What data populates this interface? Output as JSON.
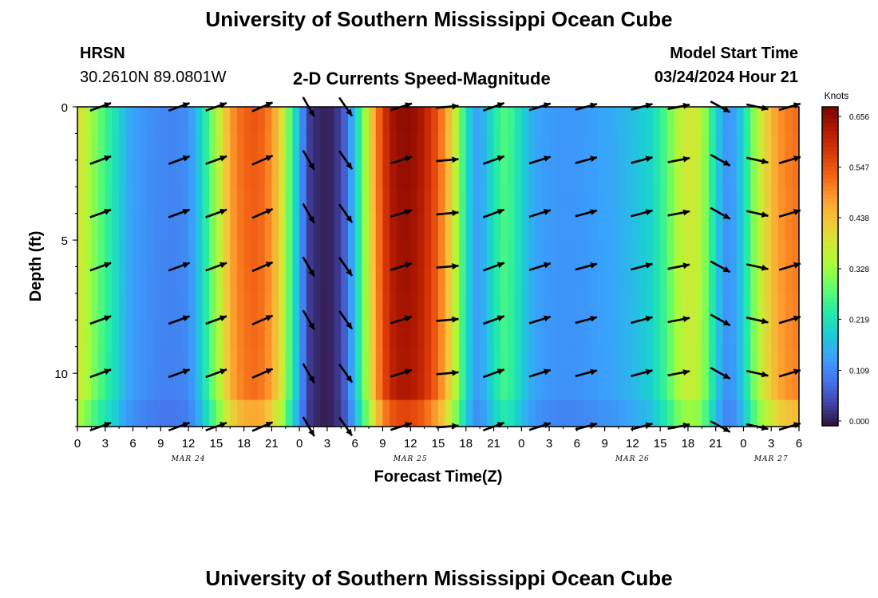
{
  "page": {
    "title": "University of Southern Mississippi Ocean Cube",
    "footer_title": "University of Southern Mississippi Ocean Cube",
    "station": "HRSN",
    "coords": "30.2610N  89.0801W",
    "subtitle": "2-D Currents Speed-Magnitude",
    "model_start_label": "Model Start Time",
    "model_start_value": "03/24/2024 Hour 21"
  },
  "chart_data": {
    "type": "heatmap",
    "title": "2-D Currents Speed-Magnitude",
    "xlabel": "Forecast Time(Z)",
    "ylabel": "Depth (ft)",
    "colorbar_label": "Knots",
    "x_hours": [
      0,
      3,
      6,
      9,
      12,
      15,
      18,
      21,
      24,
      27,
      30,
      33,
      36,
      39,
      42,
      45,
      48,
      51,
      54,
      57,
      60,
      63,
      66,
      69,
      72,
      75,
      78
    ],
    "x_tick_labels": [
      "0",
      "3",
      "6",
      "9",
      "12",
      "15",
      "18",
      "21",
      "0",
      "3",
      "6",
      "9",
      "12",
      "15",
      "18",
      "21",
      "0",
      "3",
      "6",
      "9",
      "12",
      "15",
      "18",
      "21",
      "0",
      "3",
      "6"
    ],
    "date_labels": [
      {
        "hour": 12,
        "text": "MAR 24"
      },
      {
        "hour": 36,
        "text": "MAR 25"
      },
      {
        "hour": 60,
        "text": "MAR 26"
      },
      {
        "hour": 75,
        "text": "MAR 27"
      }
    ],
    "ylim": [
      0,
      12
    ],
    "y_ticks": [
      0,
      5,
      10
    ],
    "y_tick_labels": [
      "0",
      "5",
      "10"
    ],
    "colorbar_ticks": [
      "0.000",
      "0.109",
      "0.219",
      "0.328",
      "0.438",
      "0.547",
      "0.656"
    ],
    "colorbar_range": [
      0,
      0.656
    ],
    "speed_profile": [
      {
        "h": 0,
        "v": 0.4
      },
      {
        "h": 1,
        "v": 0.35
      },
      {
        "h": 2,
        "v": 0.3
      },
      {
        "h": 3,
        "v": 0.26
      },
      {
        "h": 4,
        "v": 0.22
      },
      {
        "h": 5,
        "v": 0.17
      },
      {
        "h": 6,
        "v": 0.14
      },
      {
        "h": 8,
        "v": 0.12
      },
      {
        "h": 10,
        "v": 0.11
      },
      {
        "h": 12,
        "v": 0.12
      },
      {
        "h": 13,
        "v": 0.17
      },
      {
        "h": 14,
        "v": 0.25
      },
      {
        "h": 15,
        "v": 0.33
      },
      {
        "h": 16,
        "v": 0.42
      },
      {
        "h": 17,
        "v": 0.49
      },
      {
        "h": 18,
        "v": 0.52
      },
      {
        "h": 19,
        "v": 0.53
      },
      {
        "h": 20,
        "v": 0.52
      },
      {
        "h": 21,
        "v": 0.48
      },
      {
        "h": 22,
        "v": 0.4
      },
      {
        "h": 23,
        "v": 0.27
      },
      {
        "h": 24,
        "v": 0.15
      },
      {
        "h": 25,
        "v": 0.04
      },
      {
        "h": 26,
        "v": 0.02
      },
      {
        "h": 27,
        "v": 0.01
      },
      {
        "h": 28,
        "v": 0.03
      },
      {
        "h": 29,
        "v": 0.08
      },
      {
        "h": 30,
        "v": 0.18
      },
      {
        "h": 31,
        "v": 0.31
      },
      {
        "h": 32,
        "v": 0.45
      },
      {
        "h": 33,
        "v": 0.56
      },
      {
        "h": 34,
        "v": 0.62
      },
      {
        "h": 35,
        "v": 0.64
      },
      {
        "h": 36,
        "v": 0.64
      },
      {
        "h": 37,
        "v": 0.62
      },
      {
        "h": 38,
        "v": 0.58
      },
      {
        "h": 39,
        "v": 0.53
      },
      {
        "h": 40,
        "v": 0.45
      },
      {
        "h": 41,
        "v": 0.34
      },
      {
        "h": 42,
        "v": 0.22
      },
      {
        "h": 43,
        "v": 0.14
      },
      {
        "h": 44,
        "v": 0.16
      },
      {
        "h": 45,
        "v": 0.22
      },
      {
        "h": 46,
        "v": 0.27
      },
      {
        "h": 47,
        "v": 0.25
      },
      {
        "h": 48,
        "v": 0.2
      },
      {
        "h": 49,
        "v": 0.16
      },
      {
        "h": 50,
        "v": 0.14
      },
      {
        "h": 52,
        "v": 0.13
      },
      {
        "h": 54,
        "v": 0.13
      },
      {
        "h": 56,
        "v": 0.14
      },
      {
        "h": 58,
        "v": 0.15
      },
      {
        "h": 60,
        "v": 0.17
      },
      {
        "h": 62,
        "v": 0.2
      },
      {
        "h": 63,
        "v": 0.24
      },
      {
        "h": 64,
        "v": 0.29
      },
      {
        "h": 65,
        "v": 0.35
      },
      {
        "h": 66,
        "v": 0.38
      },
      {
        "h": 67,
        "v": 0.37
      },
      {
        "h": 68,
        "v": 0.3
      },
      {
        "h": 69,
        "v": 0.2
      },
      {
        "h": 70,
        "v": 0.13
      },
      {
        "h": 71,
        "v": 0.14
      },
      {
        "h": 72,
        "v": 0.2
      },
      {
        "h": 73,
        "v": 0.3
      },
      {
        "h": 74,
        "v": 0.38
      },
      {
        "h": 75,
        "v": 0.44
      },
      {
        "h": 76,
        "v": 0.48
      },
      {
        "h": 77,
        "v": 0.5
      },
      {
        "h": 78,
        "v": 0.51
      }
    ],
    "vector_hours": [
      2.5,
      11,
      15,
      20,
      25,
      29,
      35,
      40,
      45,
      50,
      55,
      61,
      65,
      69.5,
      73.5,
      77
    ],
    "vector_depths": [
      0,
      2,
      4,
      6,
      8,
      10,
      12
    ],
    "vector_angle_by_hour": [
      {
        "h": 0,
        "deg": -20
      },
      {
        "h": 15,
        "deg": -20
      },
      {
        "h": 22,
        "deg": -25
      },
      {
        "h": 25,
        "deg": 60
      },
      {
        "h": 29,
        "deg": 55
      },
      {
        "h": 34,
        "deg": -20
      },
      {
        "h": 40,
        "deg": -5
      },
      {
        "h": 45,
        "deg": -20
      },
      {
        "h": 55,
        "deg": -15
      },
      {
        "h": 61,
        "deg": -15
      },
      {
        "h": 66,
        "deg": -10
      },
      {
        "h": 69,
        "deg": 30
      },
      {
        "h": 72,
        "deg": 25
      },
      {
        "h": 78,
        "deg": -25
      }
    ],
    "colors": {
      "scale": [
        "#30123b",
        "#4145ab",
        "#4675ed",
        "#39a2fc",
        "#1bcfd4",
        "#24eca6",
        "#61fc6c",
        "#a4fc3b",
        "#d1e834",
        "#f3c63a",
        "#fe9b2d",
        "#f36315",
        "#d93806",
        "#b11901",
        "#7a0402"
      ],
      "vector": "#000000",
      "frame": "#000000",
      "background": "#ffffff"
    }
  }
}
